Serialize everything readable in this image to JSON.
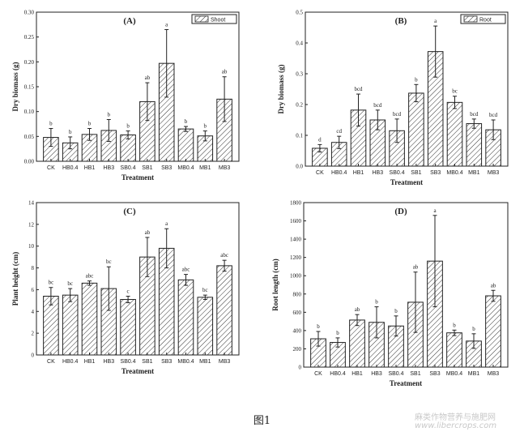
{
  "figure": {
    "caption": "图1",
    "watermark_cn": "麻类作物营养与施肥网",
    "watermark_url": "www.libercrops.com"
  },
  "chart_data": [
    {
      "type": "bar",
      "panel_label": "(A)",
      "legend": "Shoot",
      "xlabel": "Treatment",
      "ylabel": "Dry biomass (g)",
      "ylim": [
        0,
        0.3
      ],
      "yticks": [
        "0.00",
        "0.05",
        "0.10",
        "0.15",
        "0.20",
        "0.25",
        "0.30"
      ],
      "categories": [
        "CK",
        "HB0.4",
        "HB1",
        "HB3",
        "SB0.4",
        "SB1",
        "SB3",
        "MB0.4",
        "MB1",
        "MB3"
      ],
      "values": [
        0.048,
        0.037,
        0.054,
        0.062,
        0.053,
        0.12,
        0.197,
        0.065,
        0.051,
        0.125
      ],
      "errors": [
        0.018,
        0.012,
        0.012,
        0.022,
        0.008,
        0.038,
        0.068,
        0.005,
        0.01,
        0.045
      ],
      "letters": [
        "b",
        "b",
        "b",
        "b",
        "b",
        "ab",
        "a",
        "b",
        "b",
        "ab"
      ]
    },
    {
      "type": "bar",
      "panel_label": "(B)",
      "legend": "Root",
      "xlabel": "Treatment",
      "ylabel": "Dry biomass (g)",
      "ylim": [
        0,
        0.5
      ],
      "yticks": [
        "0.0",
        "0.1",
        "0.2",
        "0.3",
        "0.4",
        "0.5"
      ],
      "categories": [
        "CK",
        "HB0.4",
        "HB1",
        "HB3",
        "SB0.4",
        "SB1",
        "SB3",
        "MB0.4",
        "MB1",
        "MB3"
      ],
      "values": [
        0.058,
        0.077,
        0.182,
        0.15,
        0.115,
        0.237,
        0.372,
        0.207,
        0.138,
        0.118
      ],
      "errors": [
        0.012,
        0.02,
        0.052,
        0.032,
        0.038,
        0.028,
        0.083,
        0.02,
        0.015,
        0.032
      ],
      "letters": [
        "d",
        "cd",
        "bcd",
        "bcd",
        "bcd",
        "b",
        "a",
        "bc",
        "bcd",
        "bcd"
      ]
    },
    {
      "type": "bar",
      "panel_label": "(C)",
      "legend": "",
      "xlabel": "Treatment",
      "ylabel": "Plant height (cm)",
      "ylim": [
        0,
        14
      ],
      "yticks": [
        "0",
        "2",
        "4",
        "6",
        "8",
        "10",
        "12",
        "14"
      ],
      "categories": [
        "CK",
        "HB0.4",
        "HB1",
        "HB3",
        "SB0.4",
        "SB1",
        "SB3",
        "MB0.4",
        "MB1",
        "MB3"
      ],
      "values": [
        5.4,
        5.5,
        6.6,
        6.1,
        5.1,
        9.0,
        9.8,
        6.9,
        5.3,
        8.2
      ],
      "errors": [
        0.8,
        0.6,
        0.2,
        2.0,
        0.3,
        1.8,
        1.8,
        0.5,
        0.2,
        0.5
      ],
      "letters": [
        "bc",
        "bc",
        "abc",
        "bc",
        "c",
        "ab",
        "a",
        "abc",
        "bc",
        "abc"
      ]
    },
    {
      "type": "bar",
      "panel_label": "(D)",
      "legend": "",
      "xlabel": "Treatment",
      "ylabel": "Root length (cm)",
      "ylim": [
        0,
        1800
      ],
      "yticks": [
        "0",
        "200",
        "400",
        "600",
        "800",
        "1000",
        "1200",
        "1400",
        "1600",
        "1800"
      ],
      "categories": [
        "CK",
        "HB0.4",
        "HB1",
        "HB3",
        "SB0.4",
        "SB1",
        "SB3",
        "MB0.4",
        "MB1",
        "MB3"
      ],
      "values": [
        310,
        270,
        515,
        490,
        450,
        710,
        1160,
        375,
        285,
        780
      ],
      "errors": [
        80,
        50,
        60,
        170,
        110,
        330,
        500,
        30,
        80,
        60
      ],
      "letters": [
        "b",
        "b",
        "ab",
        "b",
        "b",
        "ab",
        "a",
        "b",
        "b",
        "ab"
      ]
    }
  ]
}
